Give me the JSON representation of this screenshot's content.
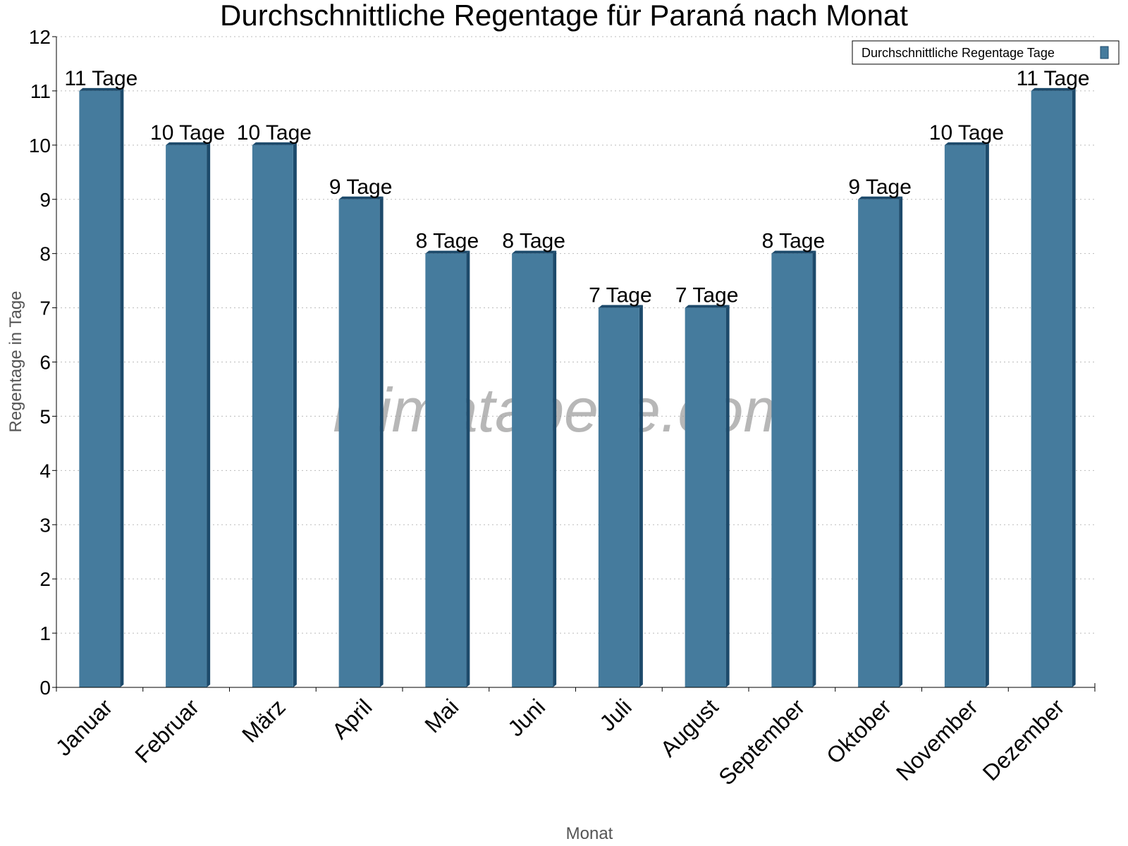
{
  "chart_data": {
    "type": "bar",
    "title": "Durchschnittliche Regentage für Paraná nach Monat",
    "xlabel": "Monat",
    "ylabel": "Regentage in Tage",
    "ylim": [
      0,
      12
    ],
    "yticks": [
      "0",
      "1",
      "2",
      "3",
      "4",
      "5",
      "6",
      "7",
      "8",
      "9",
      "10",
      "11",
      "12"
    ],
    "grid": true,
    "legend_position": "top-right",
    "categories": [
      "Januar",
      "Februar",
      "März",
      "April",
      "Mai",
      "Juni",
      "Juli",
      "August",
      "September",
      "Oktober",
      "November",
      "Dezember"
    ],
    "series": [
      {
        "name": "Durchschnittliche Regentage Tage",
        "values": [
          11,
          10,
          10,
          9,
          8,
          8,
          7,
          7,
          8,
          9,
          10,
          11
        ]
      }
    ],
    "data_labels": [
      "11 Tage",
      "10 Tage",
      "10 Tage",
      "9 Tage",
      "8 Tage",
      "8 Tage",
      "7 Tage",
      "7 Tage",
      "8 Tage",
      "9 Tage",
      "10 Tage",
      "11 Tage"
    ],
    "watermark": "klimatabelle.com",
    "colors": {
      "bar": "#457b9d",
      "bar_dark": "#1d4a6b"
    }
  }
}
